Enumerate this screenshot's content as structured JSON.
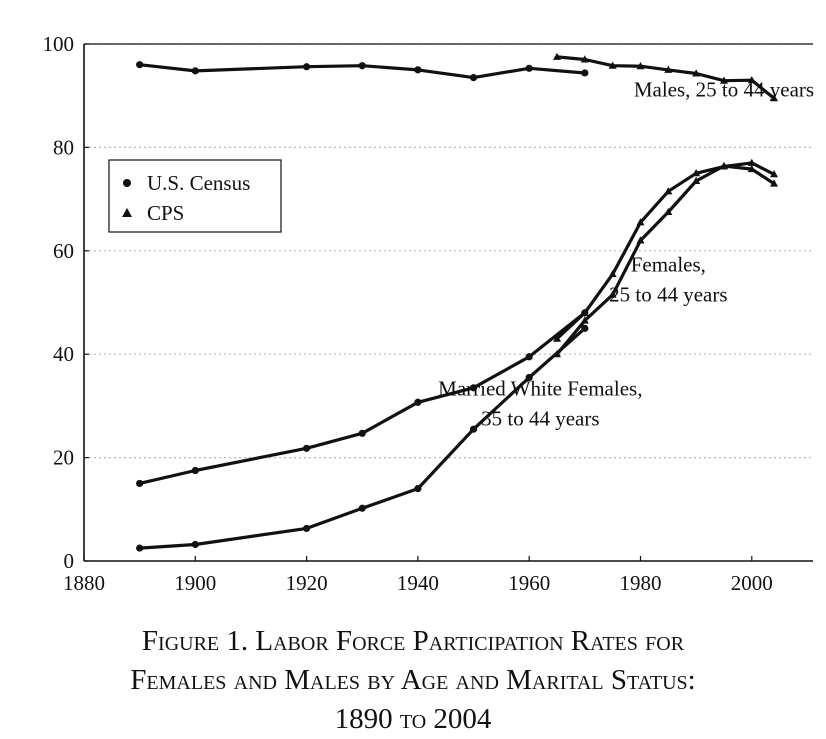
{
  "chart_data": {
    "type": "line",
    "x_ticks": [
      1880,
      1900,
      1920,
      1940,
      1960,
      1980,
      2000
    ],
    "y_ticks": [
      0,
      20,
      40,
      60,
      80,
      100
    ],
    "xlim": [
      1880,
      2011
    ],
    "ylim": [
      0,
      100
    ],
    "grid": "horizontal dotted",
    "legend": {
      "placement": "upper-left",
      "entries": [
        {
          "marker": "circle",
          "label": "U.S. Census"
        },
        {
          "marker": "triangle",
          "label": "CPS"
        }
      ]
    },
    "annotations": [
      {
        "lines": [
          "Males, 25 to 44 years"
        ],
        "x": 1995,
        "y": 89.8
      },
      {
        "lines": [
          "Females,",
          "25 to 44 years"
        ],
        "x": 1985,
        "y": 56
      },
      {
        "lines": [
          "Married White Females,",
          "35 to 44 years"
        ],
        "x": 1962,
        "y": 32
      }
    ],
    "series": [
      {
        "source": "U.S. Census",
        "group": "Males, 25 to 44 years",
        "x": [
          1890,
          1900,
          1920,
          1930,
          1940,
          1950,
          1960,
          1970
        ],
        "y": [
          96,
          94.8,
          95.6,
          95.8,
          95,
          93.5,
          95.3,
          94.4
        ]
      },
      {
        "source": "CPS",
        "group": "Males, 25 to 44 years",
        "x": [
          1965,
          1970,
          1975,
          1980,
          1985,
          1990,
          1995,
          2000,
          2004
        ],
        "y": [
          97.5,
          97,
          95.8,
          95.7,
          95,
          94.3,
          92.9,
          93,
          89.5
        ]
      },
      {
        "source": "U.S. Census",
        "group": "Females, 25 to 44 years",
        "x": [
          1890,
          1900,
          1920,
          1930,
          1940,
          1950,
          1960,
          1970
        ],
        "y": [
          15,
          17.5,
          21.8,
          24.7,
          30.7,
          33.5,
          39.5,
          48
        ]
      },
      {
        "source": "CPS",
        "group": "Females, 25 to 44 years",
        "x": [
          1965,
          1970,
          1975,
          1980,
          1985,
          1990,
          1995,
          2000,
          2004
        ],
        "y": [
          43,
          48,
          55.5,
          65.5,
          71.5,
          75,
          76.3,
          77,
          74.8
        ]
      },
      {
        "source": "U.S. Census",
        "group": "Married White Females, 35 to 44 years",
        "x": [
          1890,
          1900,
          1920,
          1930,
          1940,
          1950,
          1960,
          1970
        ],
        "y": [
          2.5,
          3.2,
          6.3,
          10.2,
          14,
          25.5,
          35.5,
          45
        ]
      },
      {
        "source": "CPS",
        "group": "Married White Females, 35 to 44 years",
        "x": [
          1965,
          1970,
          1975,
          1980,
          1985,
          1990,
          1995,
          2000,
          2004
        ],
        "y": [
          40,
          46.5,
          51.5,
          62,
          67.5,
          73.5,
          76.4,
          75.8,
          73
        ]
      }
    ]
  },
  "caption": {
    "line1": "Figure 1. Labor Force Participation Rates for",
    "line2": "Females and Males by Age and Marital Status:",
    "line3": "1890 to 2004"
  }
}
